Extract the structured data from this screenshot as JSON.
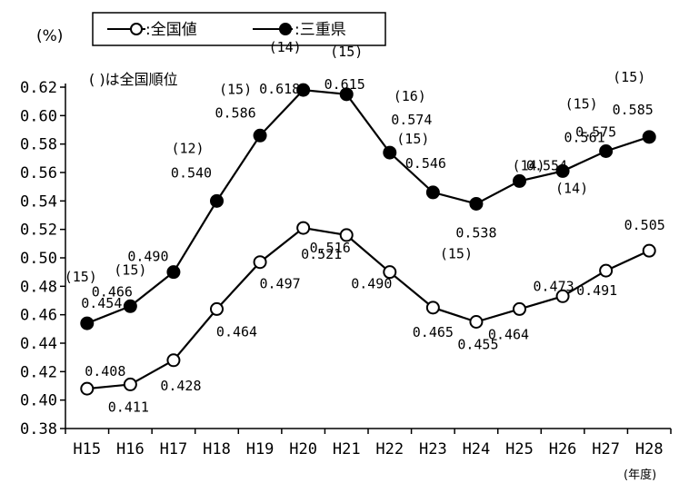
{
  "chart_data": {
    "type": "line",
    "y_unit": "(%)",
    "x_unit": "(年度)",
    "note": "( )は全国順位",
    "categories": [
      "H15",
      "H16",
      "H17",
      "H18",
      "H19",
      "H20",
      "H21",
      "H22",
      "H23",
      "H24",
      "H25",
      "H26",
      "H27",
      "H28"
    ],
    "ylim": [
      0.38,
      0.62
    ],
    "yticks": [
      "0.38",
      "0.40",
      "0.42",
      "0.44",
      "0.46",
      "0.48",
      "0.50",
      "0.52",
      "0.54",
      "0.56",
      "0.58",
      "0.60",
      "0.62"
    ],
    "legend_placement": "top-center",
    "series": [
      {
        "name": "全国値",
        "legend_label": ":全国値",
        "marker": "open-circle",
        "values": [
          0.408,
          0.411,
          0.428,
          0.464,
          0.497,
          0.521,
          0.516,
          0.49,
          0.465,
          0.455,
          0.464,
          0.473,
          0.491,
          0.505
        ],
        "labels": [
          "0.408",
          "0.411",
          "0.428",
          "0.464",
          "0.497",
          "0.521",
          "0.516",
          "0.490",
          "0.465",
          "0.455",
          "0.464",
          "0.473",
          "0.491",
          "0.505"
        ]
      },
      {
        "name": "三重県",
        "legend_label": ":三重県",
        "marker": "filled-circle",
        "values": [
          0.454,
          0.466,
          0.49,
          0.54,
          0.586,
          0.618,
          0.615,
          0.574,
          0.546,
          0.538,
          0.554,
          0.561,
          0.575,
          0.585
        ],
        "labels": [
          "0.454",
          "0.466",
          "0.490",
          "0.540",
          "0.586",
          "0.618",
          "0.615",
          "0.574",
          "0.546",
          "0.538",
          "0.554",
          "0.561",
          "0.575",
          "0.585"
        ],
        "ranks": [
          "(15)",
          "(15)",
          "",
          "(12)",
          "(15)",
          "(14)",
          "(15)",
          "(16)",
          "(15)",
          "(15)",
          "(14)",
          "(14)",
          "(15)",
          "(15)"
        ]
      }
    ]
  }
}
